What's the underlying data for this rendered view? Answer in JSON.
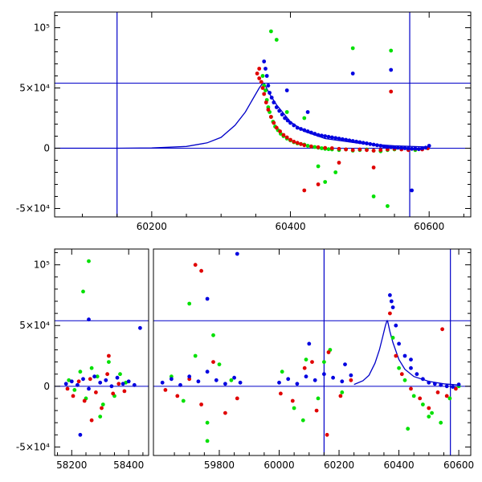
{
  "chart_data": [
    {
      "type": "scatter",
      "panel": "top",
      "title": "",
      "xlabel": "",
      "ylabel": "",
      "xlim": [
        60060,
        60660
      ],
      "ylim": [
        -57000,
        113000
      ],
      "grid": false,
      "x_ticks": [
        {
          "value": 60200,
          "label": "60200"
        },
        {
          "value": 60400,
          "label": "60400"
        },
        {
          "value": 60600,
          "label": "60600"
        }
      ],
      "y_ticks": [
        {
          "value": -50000,
          "label": "-5×10⁴"
        },
        {
          "value": 0,
          "label": "0"
        },
        {
          "value": 50000,
          "label": "5×10⁴"
        },
        {
          "value": 100000,
          "label": "10⁵"
        }
      ],
      "hlines": [
        0,
        54000
      ],
      "vlines": [
        60150,
        60572
      ],
      "colors": {
        "green": "#00e000",
        "red": "#e00000",
        "blue": "#0000e0",
        "model": "#0000c8"
      },
      "model_curve": {
        "name": "",
        "color": "#0000c8",
        "x": [
          60060,
          60150,
          60200,
          60250,
          60280,
          60300,
          60320,
          60335,
          60345,
          60355,
          60360,
          60362,
          60370,
          60380,
          60400,
          60420,
          60450,
          60500,
          60550,
          60600
        ],
        "y": [
          0,
          0,
          200,
          1500,
          4500,
          9000,
          19000,
          30000,
          40000,
          50000,
          54000,
          54000,
          45000,
          36000,
          22000,
          14000,
          8000,
          4000,
          2000,
          1000
        ]
      },
      "series": [
        {
          "name": "",
          "color": "green",
          "x": [
            60360,
            60362,
            60364,
            60366,
            60368,
            60370,
            60372,
            60375,
            60378,
            60382,
            60386,
            60390,
            60395,
            60400,
            60405,
            60410,
            60415,
            60420,
            60425,
            60430,
            60435,
            60440,
            60445,
            60450,
            60455,
            60460,
            60470,
            60480,
            60490,
            60500,
            60510,
            60520,
            60530,
            60540,
            60550,
            60560,
            60570,
            60580,
            60590,
            60598,
            60372,
            60380,
            60395,
            60420,
            60440,
            60450,
            60465,
            60490,
            60520,
            60540,
            60545
          ],
          "y": [
            60000,
            52000,
            48000,
            40000,
            34000,
            30000,
            26000,
            22000,
            18000,
            15000,
            12000,
            10000,
            8000,
            6500,
            5000,
            4000,
            3500,
            3000,
            2000,
            1500,
            1000,
            500,
            0,
            -500,
            -800,
            -1000,
            -1500,
            -1000,
            -2000,
            -1500,
            -1000,
            -2000,
            -2500,
            -1500,
            -1000,
            -500,
            -1000,
            -1500,
            -500,
            0,
            97000,
            90000,
            30000,
            25000,
            -15000,
            -28000,
            -20000,
            83000,
            -40000,
            -48000,
            81000
          ]
        },
        {
          "name": "",
          "color": "red",
          "x": [
            60352,
            60355,
            60358,
            60360,
            60362,
            60365,
            60368,
            60372,
            60376,
            60380,
            60385,
            60390,
            60395,
            60400,
            60405,
            60410,
            60415,
            60420,
            60430,
            60440,
            60450,
            60460,
            60470,
            60480,
            60490,
            60500,
            60510,
            60520,
            60530,
            60540,
            60550,
            60560,
            60570,
            60580,
            60590,
            60598,
            60355,
            60420,
            60440,
            60470,
            60520,
            60545
          ],
          "y": [
            62000,
            58000,
            55000,
            50000,
            45000,
            38000,
            32000,
            26000,
            21000,
            17000,
            14000,
            11000,
            9000,
            7000,
            5500,
            4500,
            3500,
            2500,
            1500,
            800,
            300,
            0,
            -500,
            -1000,
            -1500,
            -1000,
            -1500,
            -2000,
            -1500,
            -1000,
            -500,
            -1000,
            -1500,
            -500,
            -1000,
            0,
            66000,
            -35000,
            -30000,
            -12000,
            -16000,
            47000
          ]
        },
        {
          "name": "",
          "color": "blue",
          "x": [
            60362,
            60364,
            60366,
            60368,
            60370,
            60373,
            60376,
            60380,
            60384,
            60388,
            60392,
            60396,
            60400,
            60405,
            60410,
            60415,
            60420,
            60425,
            60430,
            60435,
            60440,
            60445,
            60450,
            60455,
            60460,
            60465,
            60470,
            60475,
            60480,
            60485,
            60490,
            60495,
            60500,
            60505,
            60510,
            60515,
            60520,
            60525,
            60530,
            60535,
            60540,
            60545,
            60550,
            60555,
            60560,
            60565,
            60570,
            60575,
            60580,
            60585,
            60590,
            60595,
            60600,
            60490,
            60545,
            60575,
            60395,
            60425
          ],
          "y": [
            72000,
            66000,
            60000,
            52000,
            46000,
            42000,
            38000,
            34000,
            31000,
            28000,
            25000,
            23000,
            21000,
            19000,
            17000,
            16000,
            15000,
            14000,
            13000,
            12000,
            11000,
            10500,
            10000,
            9500,
            9000,
            8500,
            8000,
            7500,
            7000,
            6500,
            6000,
            5500,
            5000,
            4500,
            4000,
            3500,
            3000,
            2500,
            2000,
            1500,
            1000,
            800,
            600,
            400,
            200,
            0,
            -200,
            -500,
            -300,
            -800,
            0,
            500,
            2000,
            62000,
            65000,
            -35000,
            48000,
            30000
          ]
        }
      ]
    },
    {
      "type": "scatter",
      "panel": "bottom",
      "title": "",
      "xlabel": "",
      "ylabel": "",
      "broken_axis": true,
      "segments": [
        {
          "xlim": [
            58140,
            58470
          ]
        },
        {
          "xlim": [
            59580,
            60640
          ]
        }
      ],
      "ylim": [
        -57000,
        113000
      ],
      "grid": false,
      "x_ticks": [
        {
          "value": 58200,
          "label": "58200",
          "segment": 0
        },
        {
          "value": 58400,
          "label": "58400",
          "segment": 0
        },
        {
          "value": 59800,
          "label": "59800",
          "segment": 1
        },
        {
          "value": 60000,
          "label": "60000",
          "segment": 1
        },
        {
          "value": 60200,
          "label": "60200",
          "segment": 1
        },
        {
          "value": 60400,
          "label": "60400",
          "segment": 1
        },
        {
          "value": 60600,
          "label": "60600",
          "segment": 1
        }
      ],
      "y_ticks": [
        {
          "value": -50000,
          "label": "-5×10⁴"
        },
        {
          "value": 0,
          "label": "0"
        },
        {
          "value": 50000,
          "label": "5×10⁴"
        },
        {
          "value": 100000,
          "label": "10⁵"
        }
      ],
      "hlines": [
        0,
        54000
      ],
      "vlines": [
        60150,
        60572
      ],
      "colors": {
        "green": "#00e000",
        "red": "#e00000",
        "blue": "#0000e0",
        "model": "#0000c8"
      },
      "model_curve": {
        "name": "",
        "color": "#0000c8",
        "x": [
          60250,
          60280,
          60300,
          60320,
          60335,
          60345,
          60355,
          60360,
          60362,
          60370,
          60380,
          60400,
          60420,
          60450,
          60500,
          60550,
          60600
        ],
        "y": [
          1500,
          4500,
          9000,
          19000,
          30000,
          40000,
          50000,
          54000,
          54000,
          45000,
          36000,
          22000,
          14000,
          8000,
          4000,
          2000,
          1000
        ]
      },
      "series": [
        {
          "name": "",
          "color": "green",
          "x": [
            58190,
            58210,
            58230,
            58250,
            58270,
            58290,
            58310,
            58330,
            58350,
            58370,
            58390,
            58240,
            58260,
            58300,
            59640,
            59680,
            59720,
            59760,
            59800,
            59840,
            59700,
            59760,
            59780,
            60010,
            60050,
            60090,
            60130,
            60170,
            60210,
            60080,
            60150,
            60380,
            60400,
            60420,
            60450,
            60480,
            60510,
            60540,
            60570,
            60600,
            60430,
            60500
          ],
          "y": [
            5000,
            -3000,
            12000,
            -10000,
            15000,
            8000,
            -15000,
            20000,
            -8000,
            10000,
            3000,
            78000,
            103000,
            -25000,
            8000,
            -12000,
            25000,
            -30000,
            18000,
            5000,
            68000,
            -45000,
            42000,
            12000,
            -18000,
            22000,
            -10000,
            30000,
            -5000,
            -28000,
            20000,
            40000,
            15000,
            5000,
            -8000,
            -15000,
            -22000,
            -30000,
            -10000,
            0,
            -35000,
            -25000
          ]
        },
        {
          "name": "",
          "color": "red",
          "x": [
            58185,
            58205,
            58225,
            58245,
            58265,
            58285,
            58305,
            58325,
            58345,
            58365,
            58385,
            58270,
            58330,
            59620,
            59660,
            59700,
            59740,
            59780,
            59820,
            59860,
            59720,
            59740,
            60005,
            60045,
            60085,
            60125,
            60165,
            60205,
            60240,
            60110,
            60160,
            60370,
            60390,
            60410,
            60440,
            60470,
            60500,
            60530,
            60560,
            60590,
            60545
          ],
          "y": [
            -2000,
            -8000,
            4000,
            -12000,
            6000,
            -5000,
            -18000,
            10000,
            -6000,
            2000,
            -4000,
            -28000,
            25000,
            -3000,
            -8000,
            6000,
            -15000,
            20000,
            -22000,
            -10000,
            100000,
            95000,
            -6000,
            -12000,
            15000,
            -20000,
            28000,
            -8000,
            5000,
            20000,
            -40000,
            60000,
            25000,
            10000,
            -2000,
            -10000,
            -18000,
            -5000,
            -8000,
            -2000,
            47000
          ]
        },
        {
          "name": "",
          "color": "blue",
          "x": [
            58180,
            58200,
            58220,
            58240,
            58260,
            58280,
            58300,
            58320,
            58340,
            58360,
            58380,
            58400,
            58420,
            58230,
            58260,
            58440,
            59610,
            59640,
            59670,
            59700,
            59730,
            59760,
            59790,
            59820,
            59850,
            59870,
            59760,
            59860,
            60000,
            60030,
            60060,
            60090,
            60120,
            60150,
            60180,
            60210,
            60240,
            60100,
            60220,
            60370,
            60375,
            60380,
            60390,
            60400,
            60420,
            60440,
            60460,
            60480,
            60500,
            60520,
            60540,
            60560,
            60580,
            60600,
            60440
          ],
          "y": [
            2000,
            4000,
            1000,
            6000,
            -2000,
            8000,
            3000,
            5000,
            0,
            7000,
            2000,
            4000,
            1000,
            -40000,
            55000,
            48000,
            3000,
            6000,
            1000,
            8000,
            4000,
            12000,
            5000,
            2000,
            7000,
            3000,
            72000,
            109000,
            3000,
            6000,
            2000,
            8000,
            5000,
            10000,
            7000,
            4000,
            9000,
            35000,
            18000,
            75000,
            70000,
            65000,
            50000,
            35000,
            25000,
            15000,
            10000,
            6000,
            3000,
            2000,
            1000,
            0,
            -500,
            1500,
            22000
          ]
        }
      ]
    }
  ]
}
